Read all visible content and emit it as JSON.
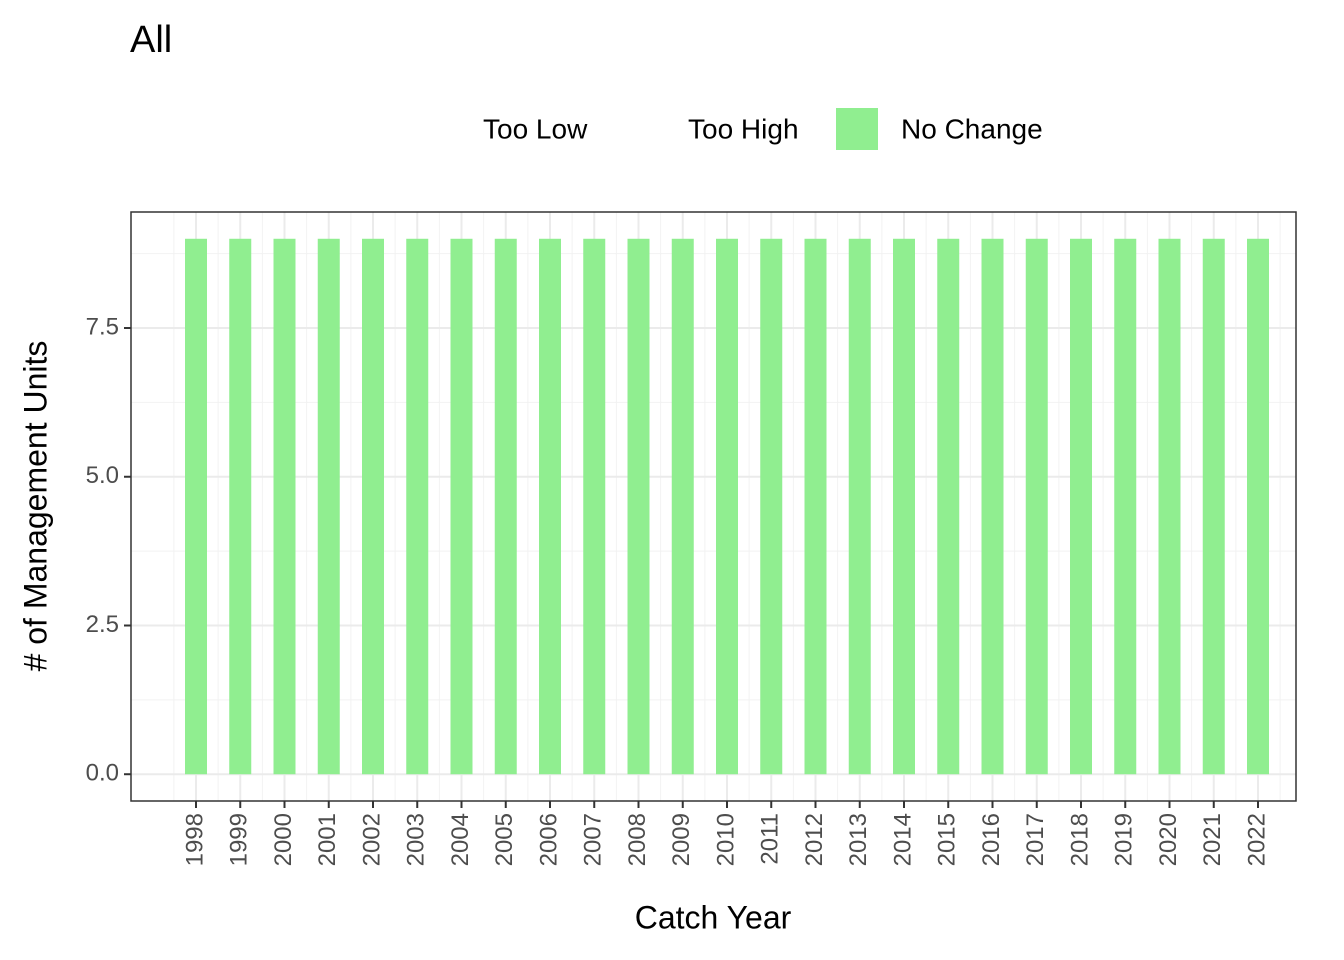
{
  "chart_data": {
    "type": "bar",
    "stacked": true,
    "title": "All",
    "xlabel": "Catch Year",
    "ylabel": "# of Management Units",
    "categories": [
      "1998",
      "1999",
      "2000",
      "2001",
      "2002",
      "2003",
      "2004",
      "2005",
      "2006",
      "2007",
      "2008",
      "2009",
      "2010",
      "2011",
      "2012",
      "2013",
      "2014",
      "2015",
      "2016",
      "2017",
      "2018",
      "2019",
      "2020",
      "2021",
      "2022"
    ],
    "series": [
      {
        "name": "Too Low",
        "color": "#ffffff",
        "values": [
          0,
          0,
          0,
          0,
          0,
          0,
          0,
          0,
          0,
          0,
          0,
          0,
          0,
          0,
          0,
          0,
          0,
          0,
          0,
          0,
          0,
          0,
          0,
          0,
          0
        ]
      },
      {
        "name": "Too High",
        "color": "#ffffff",
        "values": [
          0,
          0,
          0,
          0,
          0,
          0,
          0,
          0,
          0,
          0,
          0,
          0,
          0,
          0,
          0,
          0,
          0,
          0,
          0,
          0,
          0,
          0,
          0,
          0,
          0
        ]
      },
      {
        "name": "No Change",
        "color": "#90ee90",
        "values": [
          9,
          9,
          9,
          9,
          9,
          9,
          9,
          9,
          9,
          9,
          9,
          9,
          9,
          9,
          9,
          9,
          9,
          9,
          9,
          9,
          9,
          9,
          9,
          9,
          9
        ]
      }
    ],
    "ylim": [
      -0.45,
      9.45
    ],
    "yticks": [
      {
        "value": 0,
        "label": "0.0"
      },
      2.5,
      {
        "value": 5,
        "label": "5.0"
      },
      7.5
    ],
    "grid": true,
    "legend": "top"
  }
}
